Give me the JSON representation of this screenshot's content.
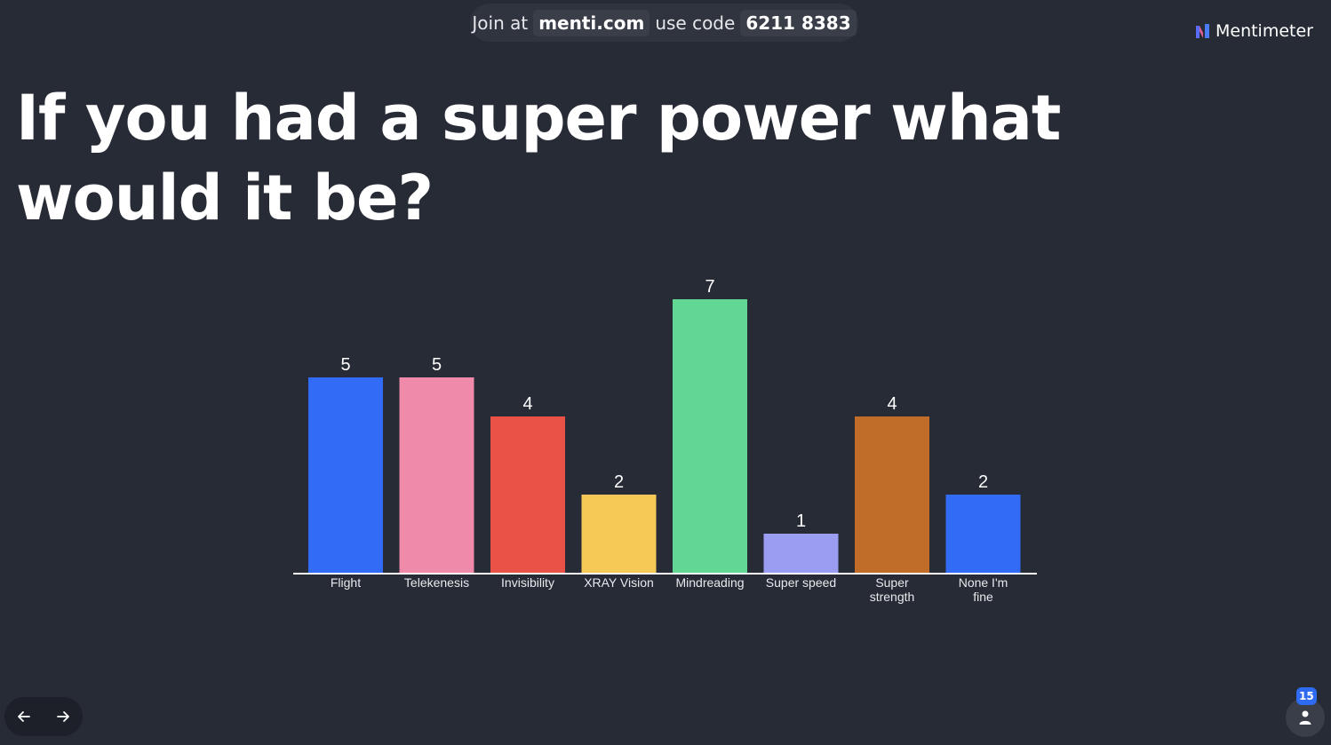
{
  "header": {
    "join_prefix": "Join at",
    "join_url": "menti.com",
    "code_prefix": "use code",
    "code": "6211 8383"
  },
  "logo": {
    "text": "Mentimeter"
  },
  "question": {
    "title": "If you had a super power what would it be?"
  },
  "participants": {
    "count": "15",
    "icon": "person-icon"
  },
  "nav": {
    "prev_icon": "arrow-left-icon",
    "next_icon": "arrow-right-icon"
  },
  "chart_data": {
    "type": "bar",
    "title": "",
    "xlabel": "",
    "ylabel": "",
    "ylim": [
      0,
      7
    ],
    "grid": false,
    "categories": [
      "Flight",
      "Telekenesis",
      "Invisibility",
      "XRAY Vision",
      "Mindreading",
      "Super speed",
      "Super strength",
      "None I'm fine"
    ],
    "values": [
      5,
      5,
      4,
      2,
      7,
      1,
      4,
      2
    ],
    "colors": [
      "#326bf6",
      "#f08aaa",
      "#ea5147",
      "#f5c955",
      "#62d794",
      "#9b9df2",
      "#c06d2a",
      "#326bf6"
    ]
  }
}
